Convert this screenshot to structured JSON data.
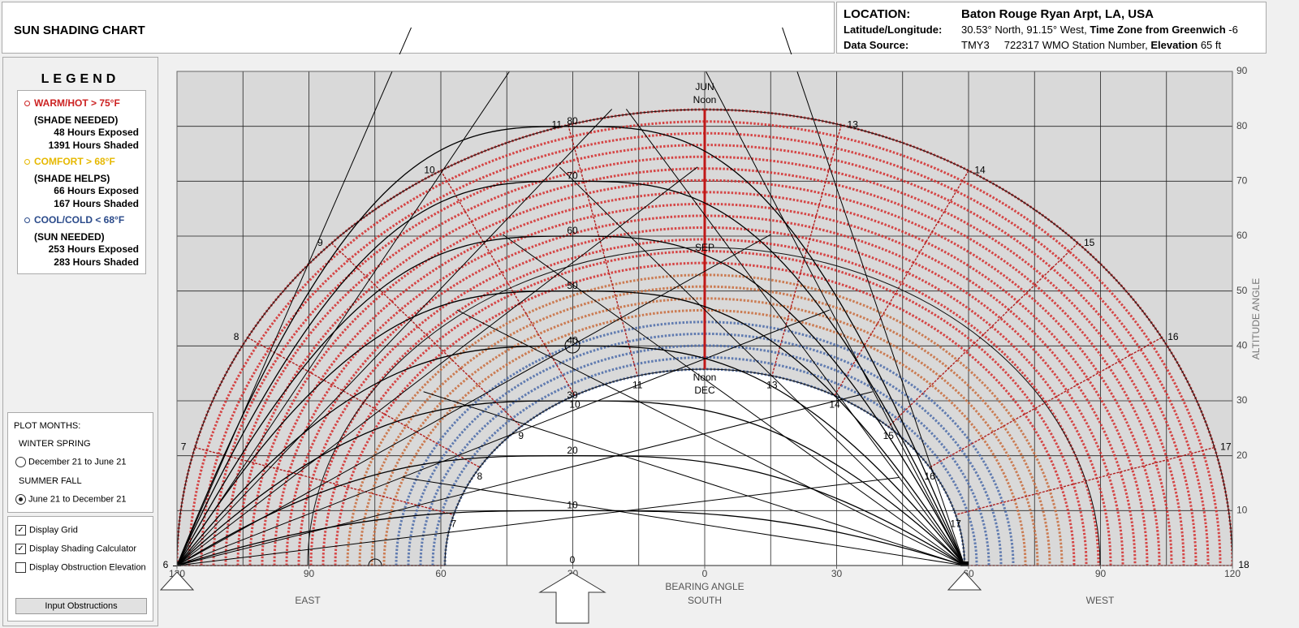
{
  "header": {
    "title": "SUN SHADING CHART",
    "location_label": "LOCATION:",
    "location": "Baton Rouge Ryan Arpt, LA, USA",
    "latlong_label": "Latitude/Longitude:",
    "latlong": "30.53° North, 91.15° West,",
    "tz_label": "Time Zone from Greenwich",
    "tz": "-6",
    "source_label": "Data Source:",
    "source": "TMY3     722317 WMO Station Number,",
    "elev_label": "Elevation",
    "elev": "65 ft"
  },
  "legend": {
    "title": "LEGEND",
    "items": [
      {
        "label": "WARM/HOT > 75°F",
        "color": "#cc2222",
        "note": "(SHADE NEEDED)",
        "exposed": "48 Hours Exposed",
        "shaded": "1391 Hours Shaded"
      },
      {
        "label": "COMFORT > 68°F",
        "color": "#e6b800",
        "note": "(SHADE HELPS)",
        "exposed": "66 Hours Exposed",
        "shaded": "167 Hours Shaded"
      },
      {
        "label": "COOL/COLD  < 68°F",
        "color": "#2a4a8a",
        "note": "(SUN NEEDED)",
        "exposed": "253 Hours Exposed",
        "shaded": "283 Hours Shaded"
      }
    ]
  },
  "plot_months": {
    "title": "PLOT MONTHS:",
    "options": [
      {
        "group": "WINTER SPRING",
        "label": "December 21 to June 21",
        "selected": false
      },
      {
        "group": "SUMMER FALL",
        "label": "June 21 to December 21",
        "selected": true
      }
    ]
  },
  "options": {
    "checkboxes": [
      {
        "label": "Display Grid",
        "checked": true
      },
      {
        "label": "Display Shading Calculator",
        "checked": true
      },
      {
        "label": "Display Obstruction Elevation",
        "checked": false
      }
    ],
    "button": "Input Obstructions"
  },
  "chart": {
    "xlabel": "BEARING ANGLE",
    "xsub": "SOUTH",
    "east": "EAST",
    "west": "WEST",
    "ylabel": "ALTITUDE ANGLE",
    "xlim": [
      -120,
      120
    ],
    "ylim": [
      0,
      90
    ],
    "xticks": [
      {
        "value": -120,
        "label": "120"
      },
      {
        "value": -90,
        "label": "90"
      },
      {
        "value": -60,
        "label": "60"
      },
      {
        "value": -30,
        "label": "30"
      },
      0,
      30,
      60,
      90,
      120
    ],
    "yticks": [
      10,
      20,
      30,
      40,
      50,
      60,
      70,
      80,
      90
    ],
    "grid": true,
    "calc_labels": [
      0,
      10,
      20,
      30,
      40,
      50,
      60,
      70,
      80
    ],
    "jun_label": "JUN",
    "jun_noon": "Noon",
    "sep_label": "SEP",
    "dec_noon": "Noon",
    "dec_label": "DEC",
    "summer_hours": [
      6,
      7,
      8,
      9,
      10,
      11,
      13,
      14,
      15,
      16,
      17,
      18
    ],
    "winter_hours": [
      7,
      8,
      9,
      10,
      11,
      13,
      14,
      15,
      16,
      17
    ]
  }
}
